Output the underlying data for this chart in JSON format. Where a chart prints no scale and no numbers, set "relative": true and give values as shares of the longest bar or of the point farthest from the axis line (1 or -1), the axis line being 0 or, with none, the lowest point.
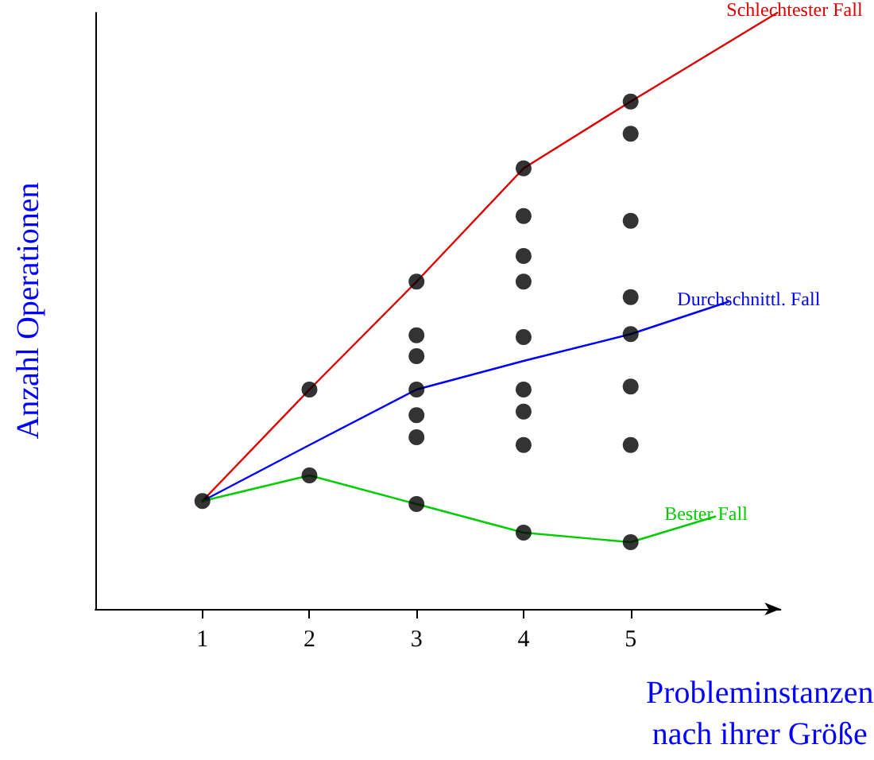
{
  "chart_data": {
    "type": "line",
    "relative": true,
    "xlabel": "Probleminstanzen\nnach ihrer Größe",
    "ylabel": "Anzahl Operationen",
    "xlim": [
      0,
      6.4
    ],
    "xticks": [
      1,
      2,
      3,
      4,
      5
    ],
    "grid": false,
    "legend": false,
    "marker": "none",
    "line_style": "solid",
    "series": [
      {
        "name": "Schlechtester Fall",
        "color": "#dd0000",
        "x": [
          1,
          2,
          3,
          4,
          5,
          6.37
        ],
        "values": [
          0.181,
          0.368,
          0.549,
          0.739,
          0.851,
          1.0
        ]
      },
      {
        "name": "Durchschnittl. Fall",
        "color": "#0000ff",
        "x": [
          1,
          2,
          3,
          4,
          5,
          5.91
        ],
        "values": [
          0.181,
          0.275,
          0.368,
          0.416,
          0.461,
          0.515
        ]
      },
      {
        "name": "Bester Fall",
        "color": "#00cc00",
        "x": [
          1,
          2,
          3,
          4,
          5,
          5.79
        ],
        "values": [
          0.181,
          0.224,
          0.176,
          0.128,
          0.112,
          0.155
        ]
      },
      {
        "type": "scatter",
        "marker": "circle",
        "color": "#000000",
        "x": [
          1,
          2,
          2,
          3,
          3,
          3,
          3,
          3,
          3,
          3,
          4,
          4,
          4,
          4,
          4,
          4,
          4,
          4,
          4,
          5,
          5,
          5,
          5,
          5,
          5,
          5,
          5
        ],
        "values": [
          0.181,
          0.368,
          0.224,
          0.549,
          0.459,
          0.424,
          0.368,
          0.325,
          0.288,
          0.176,
          0.739,
          0.659,
          0.592,
          0.549,
          0.456,
          0.368,
          0.331,
          0.275,
          0.128,
          0.851,
          0.797,
          0.651,
          0.523,
          0.461,
          0.373,
          0.275,
          0.112
        ]
      }
    ]
  }
}
